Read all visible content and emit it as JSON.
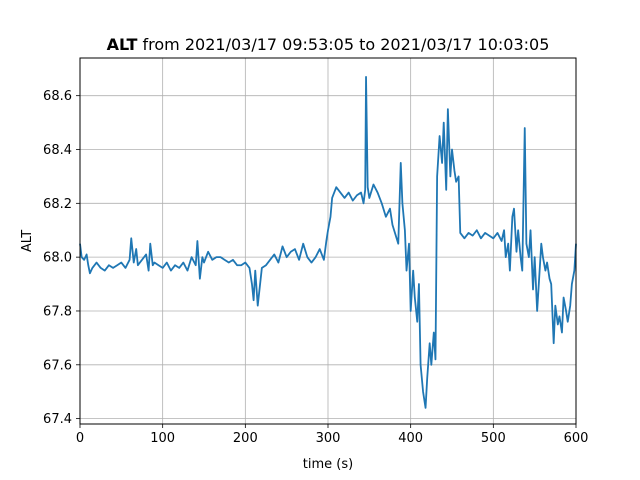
{
  "chart_data": {
    "type": "line",
    "title_prefix": "ALT",
    "title_suffix": " from 2021/03/17 09:53:05 to 2021/03/17 10:03:05",
    "xlabel": "time (s)",
    "ylabel": "ALT",
    "xlim": [
      0,
      600
    ],
    "ylim": [
      67.38,
      68.74
    ],
    "grid": true,
    "xticks": [
      0,
      100,
      200,
      300,
      400,
      500,
      600
    ],
    "yticks": [
      67.4,
      67.6,
      67.8,
      68.0,
      68.2,
      68.4,
      68.6
    ],
    "xtick_labels": [
      "0",
      "100",
      "200",
      "300",
      "400",
      "500",
      "600"
    ],
    "ytick_labels": [
      "67.4",
      "67.6",
      "67.8",
      "68.0",
      "68.2",
      "68.4",
      "68.6"
    ],
    "series": [
      {
        "color": "#1f77b4",
        "x": [
          0,
          2,
          5,
          8,
          10,
          12,
          15,
          20,
          25,
          30,
          35,
          40,
          45,
          50,
          55,
          60,
          62,
          65,
          68,
          70,
          75,
          80,
          83,
          85,
          88,
          90,
          95,
          100,
          105,
          110,
          115,
          120,
          125,
          130,
          135,
          140,
          142,
          145,
          148,
          150,
          155,
          160,
          165,
          170,
          175,
          180,
          185,
          190,
          195,
          200,
          205,
          208,
          210,
          212,
          215,
          220,
          225,
          230,
          235,
          240,
          245,
          250,
          255,
          260,
          265,
          270,
          275,
          280,
          285,
          290,
          295,
          298,
          300,
          303,
          305,
          310,
          315,
          320,
          325,
          330,
          335,
          340,
          343,
          345,
          346,
          348,
          350,
          355,
          360,
          365,
          370,
          375,
          378,
          380,
          385,
          388,
          390,
          393,
          395,
          398,
          400,
          403,
          405,
          408,
          410,
          412,
          415,
          418,
          420,
          423,
          425,
          428,
          430,
          432,
          435,
          438,
          440,
          443,
          445,
          448,
          450,
          453,
          455,
          458,
          460,
          465,
          470,
          475,
          480,
          485,
          490,
          495,
          500,
          505,
          510,
          513,
          515,
          518,
          520,
          523,
          525,
          528,
          530,
          533,
          535,
          538,
          540,
          543,
          545,
          548,
          550,
          553,
          555,
          558,
          560,
          563,
          565,
          568,
          570,
          573,
          575,
          578,
          580,
          583,
          585,
          588,
          590,
          593,
          595,
          598,
          600
        ],
        "y": [
          68.05,
          68.0,
          67.99,
          68.01,
          67.97,
          67.94,
          67.96,
          67.98,
          67.96,
          67.95,
          67.97,
          67.96,
          67.97,
          67.98,
          67.96,
          67.99,
          68.07,
          67.98,
          68.03,
          67.97,
          67.99,
          68.01,
          67.95,
          68.05,
          67.97,
          67.98,
          67.97,
          67.96,
          67.98,
          67.95,
          67.97,
          67.96,
          67.98,
          67.95,
          68.0,
          67.97,
          68.06,
          67.92,
          68.0,
          67.98,
          68.02,
          67.99,
          68.0,
          68.0,
          67.99,
          67.98,
          67.99,
          67.97,
          67.97,
          67.98,
          67.96,
          67.9,
          67.84,
          67.95,
          67.82,
          67.96,
          67.97,
          67.99,
          68.01,
          67.98,
          68.04,
          68.0,
          68.02,
          68.03,
          67.99,
          68.05,
          68.0,
          67.98,
          68.0,
          68.03,
          67.99,
          68.06,
          68.1,
          68.15,
          68.22,
          68.26,
          68.24,
          68.22,
          68.24,
          68.21,
          68.23,
          68.24,
          68.2,
          68.25,
          68.67,
          68.26,
          68.22,
          68.27,
          68.24,
          68.2,
          68.15,
          68.18,
          68.12,
          68.1,
          68.05,
          68.35,
          68.2,
          68.1,
          67.95,
          68.05,
          67.8,
          67.95,
          67.85,
          67.76,
          67.9,
          67.6,
          67.5,
          67.44,
          67.55,
          67.68,
          67.6,
          67.72,
          67.62,
          68.3,
          68.45,
          68.35,
          68.5,
          68.25,
          68.55,
          68.3,
          68.4,
          68.32,
          68.28,
          68.3,
          68.09,
          68.07,
          68.09,
          68.08,
          68.1,
          68.07,
          68.09,
          68.08,
          68.07,
          68.09,
          68.06,
          68.1,
          68.0,
          68.05,
          67.95,
          68.15,
          68.18,
          68.02,
          68.1,
          68.0,
          67.95,
          68.48,
          68.05,
          68.0,
          68.1,
          67.88,
          68.0,
          67.8,
          67.9,
          68.05,
          68.0,
          67.95,
          67.98,
          67.92,
          67.9,
          67.68,
          67.82,
          67.75,
          67.78,
          67.72,
          67.85,
          67.8,
          67.76,
          67.82,
          67.9,
          67.95,
          68.05
        ]
      }
    ]
  }
}
